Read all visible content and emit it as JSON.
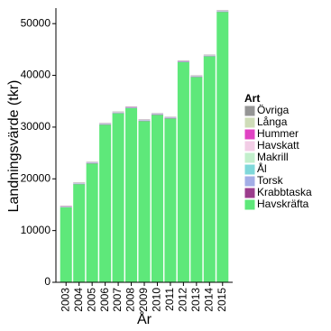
{
  "chart_data": {
    "type": "stacked_bar",
    "x_label": "År",
    "y_label": "Landningsvärde (tkr)",
    "legend_title": "Art",
    "categories": [
      "2003",
      "2004",
      "2005",
      "2006",
      "2007",
      "2008",
      "2009",
      "2010",
      "2011",
      "2012",
      "2013",
      "2014",
      "2015"
    ],
    "series": [
      {
        "name": "Havskräfta",
        "color": "#5ee87a",
        "values": [
          14470,
          18970,
          22970,
          30470,
          32670,
          33670,
          31170,
          32370,
          31670,
          42570,
          39670,
          43670,
          52270
        ]
      },
      {
        "name": "Krabbtaska",
        "color": "#9b3d8c",
        "values": [
          50,
          50,
          50,
          50,
          50,
          50,
          50,
          50,
          50,
          50,
          50,
          50,
          50
        ]
      },
      {
        "name": "Torsk",
        "color": "#a3aee6",
        "values": [
          80,
          80,
          80,
          80,
          80,
          80,
          80,
          80,
          80,
          80,
          80,
          80,
          80
        ]
      },
      {
        "name": "Ål",
        "color": "#7fd8da",
        "values": [
          20,
          20,
          20,
          20,
          20,
          20,
          20,
          20,
          20,
          20,
          20,
          20,
          20
        ]
      },
      {
        "name": "Makrill",
        "color": "#c2efcc",
        "values": [
          30,
          30,
          30,
          30,
          30,
          30,
          30,
          30,
          30,
          30,
          30,
          30,
          30
        ]
      },
      {
        "name": "Havskatt",
        "color": "#f2cde6",
        "values": [
          20,
          20,
          20,
          20,
          20,
          20,
          20,
          20,
          20,
          20,
          20,
          20,
          20
        ]
      },
      {
        "name": "Hummer",
        "color": "#e043c3",
        "values": [
          40,
          40,
          40,
          40,
          40,
          40,
          40,
          40,
          40,
          40,
          40,
          40,
          40
        ]
      },
      {
        "name": "Långa",
        "color": "#cfdcb8",
        "values": [
          30,
          30,
          30,
          30,
          30,
          30,
          30,
          30,
          30,
          30,
          30,
          30,
          30
        ]
      },
      {
        "name": "Övriga",
        "color": "#959595",
        "values": [
          60,
          60,
          60,
          60,
          60,
          60,
          60,
          60,
          60,
          60,
          60,
          60,
          60
        ]
      }
    ],
    "ylim": [
      0,
      53000
    ],
    "yticks": [
      0,
      10000,
      20000,
      30000,
      40000,
      50000
    ]
  }
}
